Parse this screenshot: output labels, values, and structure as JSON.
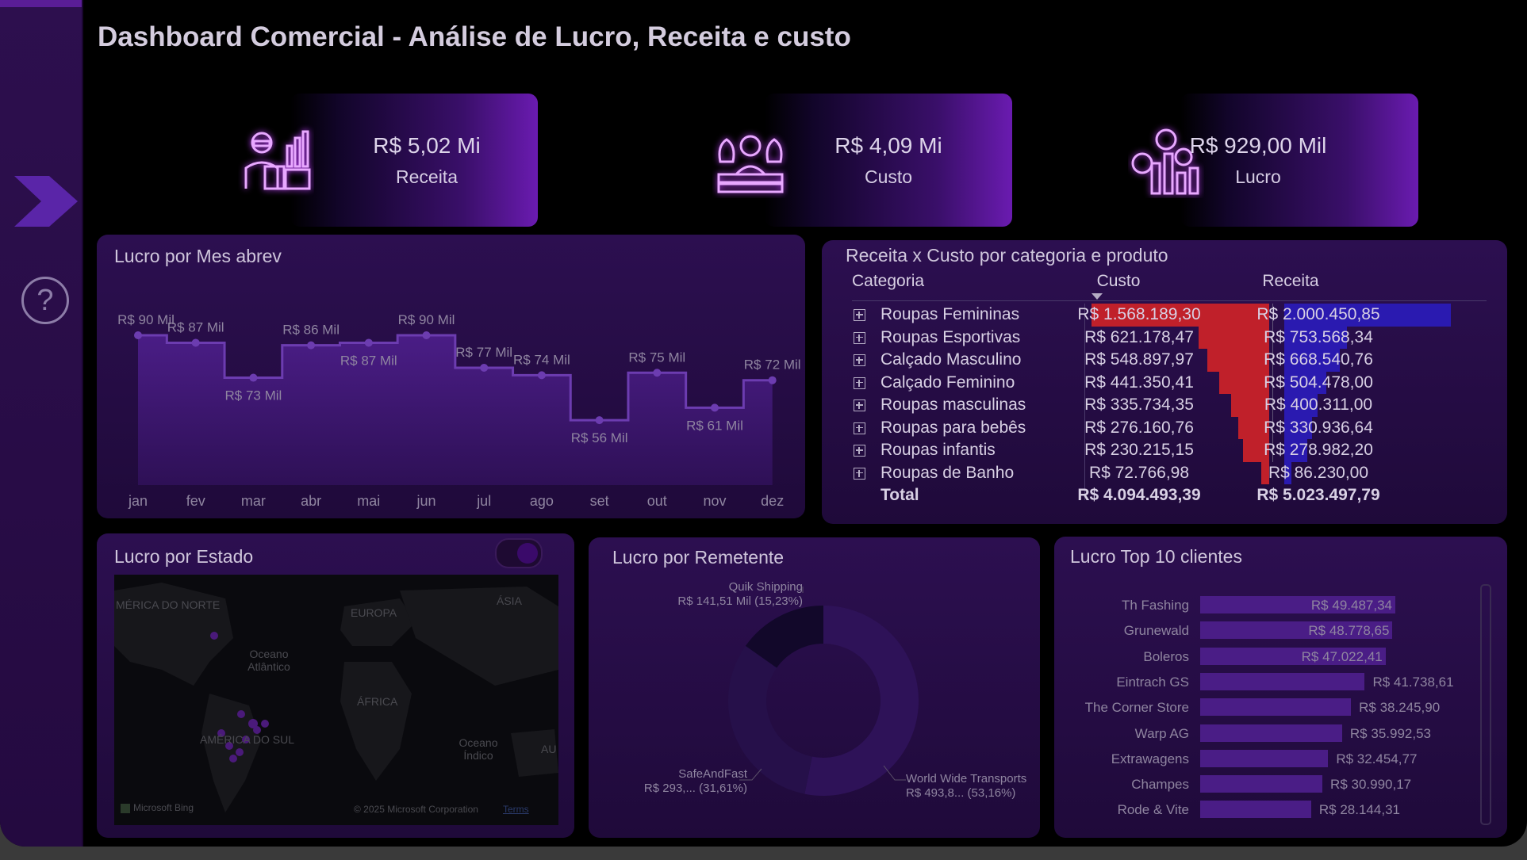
{
  "title": "Dashboard Comercial - Análise de Lucro, Receita e custo",
  "sidebar": {
    "nav_icon": "chevron-right-icon",
    "help_icon": "question-circle-icon"
  },
  "kpis": [
    {
      "value": "R$ 5,02 Mi",
      "label": "Receita",
      "icon": "businessman-chart-icon"
    },
    {
      "value": "R$ 4,09 Mi",
      "label": "Custo",
      "icon": "money-bags-icon"
    },
    {
      "value": "R$ 929,00 Mil",
      "label": "Lucro",
      "icon": "coins-growth-icon"
    }
  ],
  "lucro_mes": {
    "title": "Lucro por Mes abrev",
    "chart_data": {
      "type": "area",
      "categories": [
        "jan",
        "fev",
        "mar",
        "abr",
        "mai",
        "jun",
        "jul",
        "ago",
        "set",
        "out",
        "nov",
        "dez"
      ],
      "values": [
        90,
        87,
        73,
        86,
        87,
        90,
        77,
        74,
        56,
        75,
        61,
        72
      ],
      "labels": [
        "R$ 90 Mil",
        "R$ 87 Mil",
        "R$ 73 Mil",
        "R$ 86 Mil",
        "R$ 87 Mil",
        "R$ 90 Mil",
        "R$ 77 Mil",
        "R$ 74 Mil",
        "R$ 56 Mil",
        "R$ 75 Mil",
        "R$ 61 Mil",
        "R$ 72 Mil"
      ],
      "step": true
    }
  },
  "receita_custo": {
    "title": "Receita x Custo por categoria e produto",
    "headers": [
      "Categoria",
      "Custo",
      "Receita"
    ],
    "rows": [
      {
        "categoria": "Roupas Femininas",
        "custo": "R$ 1.568.189,30",
        "receita": "R$ 2.000.450,85",
        "custo_v": 1568189.3,
        "receita_v": 2000450.85
      },
      {
        "categoria": "Roupas Esportivas",
        "custo": "R$ 621.178,47",
        "receita": "R$ 753.568,34",
        "custo_v": 621178.47,
        "receita_v": 753568.34
      },
      {
        "categoria": "Calçado Masculino",
        "custo": "R$ 548.897,97",
        "receita": "R$ 668.540,76",
        "custo_v": 548897.97,
        "receita_v": 668540.76
      },
      {
        "categoria": "Calçado Feminino",
        "custo": "R$ 441.350,41",
        "receita": "R$ 504.478,00",
        "custo_v": 441350.41,
        "receita_v": 504478.0
      },
      {
        "categoria": "Roupas masculinas",
        "custo": "R$ 335.734,35",
        "receita": "R$ 400.311,00",
        "custo_v": 335734.35,
        "receita_v": 400311.0
      },
      {
        "categoria": "Roupas para bebês",
        "custo": "R$ 276.160,76",
        "receita": "R$ 330.936,64",
        "custo_v": 276160.76,
        "receita_v": 330936.64
      },
      {
        "categoria": "Roupas infantis",
        "custo": "R$ 230.215,15",
        "receita": "R$ 278.982,20",
        "custo_v": 230215.15,
        "receita_v": 278982.2
      },
      {
        "categoria": "Roupas de Banho",
        "custo": "R$ 72.766,98",
        "receita": "R$ 86.230,00",
        "custo_v": 72766.98,
        "receita_v": 86230.0
      }
    ],
    "total": {
      "label": "Total",
      "custo": "R$ 4.094.493,39",
      "receita": "R$ 5.023.497,79"
    },
    "colors": {
      "custo_bar": "#c0202a",
      "receita_bar": "#2a1ab0"
    }
  },
  "lucro_estado": {
    "title": "Lucro por Estado",
    "map_labels": [
      "MÉRICA DO NORTE",
      "EUROPA",
      "ÁSIA",
      "Oceano Atlântico",
      "ÁFRICA",
      "AMÉRICA DO SUL",
      "Oceano Índico",
      "AU"
    ],
    "attribution": "Microsoft Bing",
    "copyright": "© 2025 Microsoft Corporation",
    "terms": "Terms"
  },
  "lucro_remetente": {
    "title": "Lucro por Remetente",
    "chart_data": {
      "type": "pie",
      "donut": true,
      "slices": [
        {
          "name": "World Wide Transports",
          "label": "R$ 493,8... (53,16%)",
          "value": 53.16
        },
        {
          "name": "SafeAndFast",
          "label": "R$ 293,... (31,61%)",
          "value": 31.61
        },
        {
          "name": "Quik Shipping",
          "label": "R$ 141,51 Mil (15,23%)",
          "value": 15.23
        }
      ]
    }
  },
  "top_clientes": {
    "title": "Lucro Top 10 clientes",
    "chart_data": {
      "type": "bar",
      "orientation": "horizontal",
      "categories": [
        "Th Fashing",
        "Grunewald",
        "Boleros",
        "Eintrach GS",
        "The Corner Store",
        "Warp AG",
        "Extrawagens",
        "Champes",
        "Rode & Vite"
      ],
      "values": [
        49487.34,
        48778.65,
        47022.41,
        41738.61,
        38245.9,
        35992.53,
        32454.77,
        30990.17,
        28144.31
      ],
      "labels": [
        "R$ 49.487,34",
        "R$ 48.778,65",
        "R$ 47.022,41",
        "R$ 41.738,61",
        "R$ 38.245,90",
        "R$ 35.992,53",
        "R$ 32.454,77",
        "R$ 30.990,17",
        "R$ 28.144,31"
      ]
    }
  }
}
